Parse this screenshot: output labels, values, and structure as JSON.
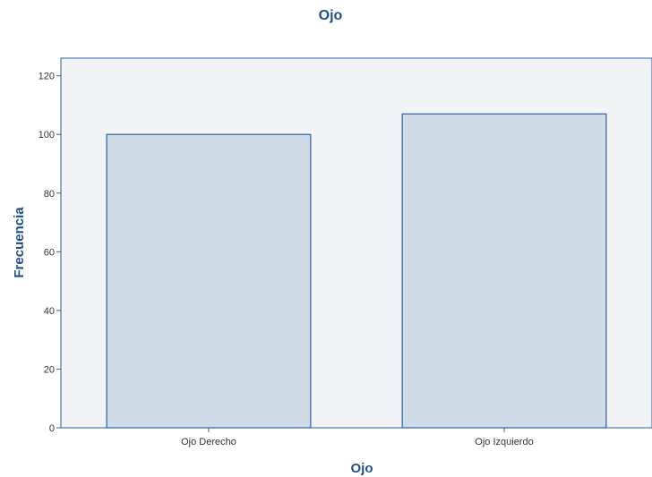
{
  "chart_data": {
    "type": "bar",
    "title": "Ojo",
    "xlabel": "Ojo",
    "ylabel": "Frecuencia",
    "categories": [
      "Ojo Derecho",
      "Ojo Izquierdo"
    ],
    "values": [
      100,
      107
    ],
    "ylim": [
      0,
      126
    ],
    "yticks": [
      0,
      20,
      40,
      60,
      80,
      100,
      120
    ],
    "grid": false,
    "legend": "none",
    "colors": {
      "bar_fill": "#d0dbe8",
      "bar_stroke": "#2f5f9e",
      "plot_bg": "#f2f3f5",
      "axis": "#2f5f9e",
      "title": "#1f4e8c"
    }
  }
}
